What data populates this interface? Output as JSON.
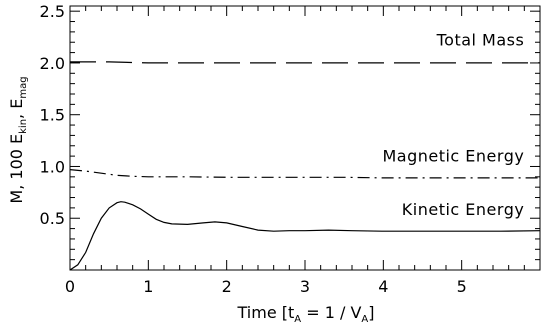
{
  "chart_data": {
    "type": "line",
    "xlabel": {
      "prefix": "Time  [t",
      "sub1": "A",
      "middle": " = 1 / V",
      "sub2": "A",
      "suffix": "]"
    },
    "ylabel": {
      "part1": "M, 100 E",
      "sub1": "kin",
      "part2": ", E",
      "sub2": "mag"
    },
    "xlim": [
      0,
      6
    ],
    "ylim": [
      0,
      2.55
    ],
    "xticks": [
      0,
      1,
      2,
      3,
      4,
      5
    ],
    "xtick_labels": [
      "0",
      "1",
      "2",
      "3",
      "4",
      "5"
    ],
    "yticks": [
      0.5,
      1.0,
      1.5,
      2.0,
      2.5
    ],
    "ytick_labels": [
      "0.5",
      "1.0",
      "1.5",
      "2.0",
      "2.5"
    ],
    "grid": false,
    "series": [
      {
        "name": "Total Mass",
        "style": "dashed",
        "color": "#000000",
        "x": [
          0,
          0.5,
          1,
          1.5,
          2,
          2.5,
          3,
          3.5,
          4,
          4.5,
          5,
          5.5,
          6
        ],
        "y": [
          2.01,
          2.01,
          2.0,
          2.0,
          2.0,
          2.0,
          2.0,
          2.0,
          2.0,
          2.0,
          2.0,
          2.0,
          2.0
        ]
      },
      {
        "name": "Magnetic Energy",
        "style": "dashdot",
        "color": "#000000",
        "x": [
          0,
          0.2,
          0.4,
          0.6,
          0.8,
          1.0,
          1.5,
          2,
          2.5,
          3,
          3.5,
          4,
          4.5,
          5,
          5.5,
          6
        ],
        "y": [
          0.97,
          0.955,
          0.935,
          0.915,
          0.905,
          0.9,
          0.9,
          0.895,
          0.895,
          0.895,
          0.895,
          0.89,
          0.89,
          0.89,
          0.89,
          0.89
        ]
      },
      {
        "name": "Kinetic Energy",
        "style": "solid",
        "color": "#000000",
        "x": [
          0,
          0.1,
          0.2,
          0.3,
          0.4,
          0.5,
          0.6,
          0.65,
          0.7,
          0.8,
          0.9,
          1.0,
          1.1,
          1.2,
          1.3,
          1.5,
          1.7,
          1.85,
          2.0,
          2.2,
          2.4,
          2.6,
          2.8,
          3.0,
          3.3,
          3.6,
          4.0,
          4.5,
          5.0,
          5.5,
          6.0
        ],
        "y": [
          0.0,
          0.05,
          0.17,
          0.35,
          0.5,
          0.6,
          0.65,
          0.66,
          0.655,
          0.63,
          0.59,
          0.54,
          0.49,
          0.46,
          0.445,
          0.44,
          0.455,
          0.465,
          0.455,
          0.42,
          0.385,
          0.375,
          0.38,
          0.38,
          0.385,
          0.38,
          0.375,
          0.375,
          0.375,
          0.375,
          0.38
        ]
      }
    ],
    "annotations": [
      {
        "text": "Total Mass",
        "x": 5.8,
        "y": 2.17,
        "anchor": "end"
      },
      {
        "text": "Magnetic Energy",
        "x": 5.8,
        "y": 1.05,
        "anchor": "end"
      },
      {
        "text": "Kinetic Energy",
        "x": 5.8,
        "y": 0.53,
        "anchor": "end"
      }
    ]
  }
}
